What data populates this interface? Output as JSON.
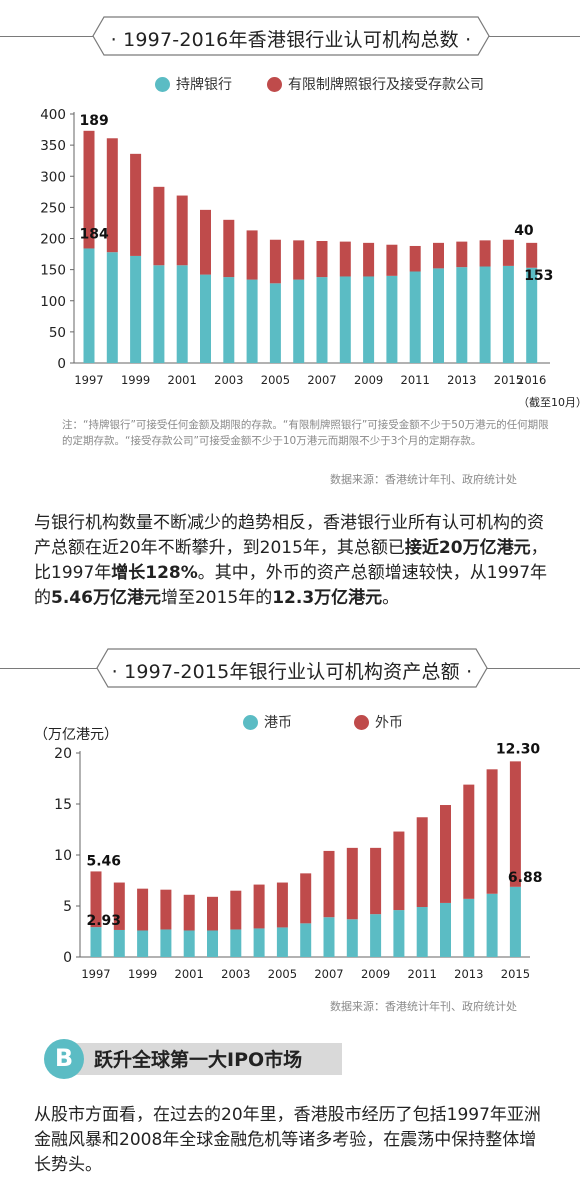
{
  "chart1": {
    "title": "· 1997-2016年香港银行业认可机构总数 ·",
    "legend": [
      {
        "label": "持牌银行",
        "color": "#5bbcc4"
      },
      {
        "label": "有限制牌照银行及接受存款公司",
        "color": "#bf4b4b"
      }
    ],
    "annotations": {
      "top_first": "189",
      "bottom_first": "184",
      "top_last": "40",
      "bottom_last": "153"
    },
    "x_ticks": [
      "1997",
      "1999",
      "2001",
      "2003",
      "2005",
      "2007",
      "2009",
      "2011",
      "2013",
      "2015",
      "2016"
    ],
    "x_note": "（截至10月）",
    "y_ticks": [
      "0",
      "50",
      "100",
      "150",
      "200",
      "250",
      "300",
      "350",
      "400"
    ],
    "note": "注：“持牌银行”可接受任何金额及期限的存款。“有限制牌照银行”可接受金额不少于50万港元的任何期限的定期存款。“接受存款公司”可接受金额不少于10万港元而期限不少于3个月的定期存款。",
    "source": "数据来源：香港统计年刊、政府统计处"
  },
  "paragraph1": {
    "t1": "与银行机构数量不断减少的趋势相反，香港银行业所有认可机构的资产总额在近20年不断攀升，到2015年，其总额已",
    "b1": "接近20万亿港元",
    "t2": "，比1997年",
    "b2": "增长128%",
    "t3": "。其中，外币的资产总额增速较快，从1997年的",
    "b3": "5.46万亿港元",
    "t4": "增至2015年的",
    "b4": "12.3万亿港元",
    "t5": "。"
  },
  "chart2": {
    "title": "· 1997-2015年银行业认可机构资产总额 ·",
    "unit": "（万亿港元）",
    "legend": [
      {
        "label": "港币",
        "color": "#5bbcc4"
      },
      {
        "label": "外币",
        "color": "#bf4b4b"
      }
    ],
    "annotations": {
      "top_first": "5.46",
      "bottom_first": "2.93",
      "top_last": "12.30",
      "bottom_last": "6.88"
    },
    "x_ticks": [
      "1997",
      "1999",
      "2001",
      "2003",
      "2005",
      "2007",
      "2009",
      "2011",
      "2013",
      "2015"
    ],
    "y_ticks": [
      "0",
      "5",
      "10",
      "15",
      "20"
    ],
    "source": "数据来源：香港统计年刊、政府统计处"
  },
  "section_b": {
    "letter": "B",
    "title": "跃升全球第一大IPO市场"
  },
  "paragraph2": "从股市方面看，在过去的20年里，香港股市经历了包括1997年亚洲金融风暴和2008年全球金融危机等诸多考验，在震荡中保持整体增长势头。",
  "chart_data": [
    {
      "type": "bar",
      "stacked": true,
      "title": "1997-2016年香港银行业认可机构总数",
      "categories": [
        "1997",
        "1998",
        "1999",
        "2000",
        "2001",
        "2002",
        "2003",
        "2004",
        "2005",
        "2006",
        "2007",
        "2008",
        "2009",
        "2010",
        "2011",
        "2012",
        "2013",
        "2014",
        "2015",
        "2016"
      ],
      "series": [
        {
          "name": "持牌银行",
          "values": [
            184,
            178,
            172,
            157,
            157,
            142,
            138,
            134,
            128,
            134,
            138,
            139,
            139,
            140,
            147,
            152,
            154,
            155,
            156,
            153
          ]
        },
        {
          "name": "有限制牌照银行及接受存款公司",
          "values": [
            189,
            183,
            164,
            126,
            112,
            104,
            92,
            79,
            70,
            63,
            58,
            56,
            54,
            50,
            41,
            41,
            41,
            42,
            42,
            40
          ]
        }
      ],
      "ylim": [
        0,
        400
      ]
    },
    {
      "type": "bar",
      "stacked": true,
      "title": "1997-2015年银行业认可机构资产总额",
      "ylabel": "万亿港元",
      "categories": [
        "1997",
        "1998",
        "1999",
        "2000",
        "2001",
        "2002",
        "2003",
        "2004",
        "2005",
        "2006",
        "2007",
        "2008",
        "2009",
        "2010",
        "2011",
        "2012",
        "2013",
        "2014",
        "2015"
      ],
      "series": [
        {
          "name": "港币",
          "values": [
            2.93,
            2.65,
            2.6,
            2.7,
            2.6,
            2.6,
            2.7,
            2.8,
            2.9,
            3.3,
            3.9,
            3.7,
            4.2,
            4.6,
            4.9,
            5.3,
            5.7,
            6.2,
            6.88
          ]
        },
        {
          "name": "外币",
          "values": [
            5.46,
            4.65,
            4.1,
            3.9,
            3.5,
            3.3,
            3.8,
            4.3,
            4.4,
            4.9,
            6.5,
            7.0,
            6.5,
            7.7,
            8.8,
            9.6,
            11.2,
            12.2,
            12.3
          ]
        }
      ],
      "ylim": [
        0,
        20
      ]
    }
  ]
}
